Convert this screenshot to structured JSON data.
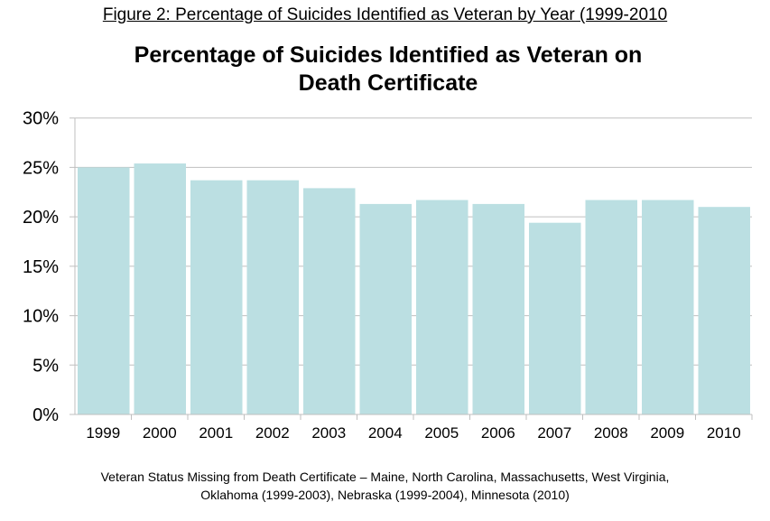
{
  "figure_caption": "Figure 2: Percentage of Suicides Identified as Veteran by Year (1999-2010",
  "footnote": {
    "line1": "Veteran Status Missing from Death Certificate – Maine, North Carolina, Massachusetts, West Virginia,",
    "line2": "Oklahoma (1999-2003), Nebraska (1999-2004), Minnesota (2010)"
  },
  "colors": {
    "bar": "#bbdfe2",
    "grid": "#bfbfbf"
  },
  "chart_data": {
    "type": "bar",
    "title": "Percentage of Suicides Identified as Veteran on Death Certificate",
    "title_lines": [
      "Percentage of Suicides Identified as Veteran on",
      "Death Certificate"
    ],
    "xlabel": "",
    "ylabel": "",
    "categories": [
      "1999",
      "2000",
      "2001",
      "2002",
      "2003",
      "2004",
      "2005",
      "2006",
      "2007",
      "2008",
      "2009",
      "2010"
    ],
    "values": [
      25.0,
      25.4,
      23.7,
      23.7,
      22.9,
      21.3,
      21.7,
      21.3,
      19.4,
      21.7,
      21.7,
      21.0
    ],
    "ylim": [
      0,
      30
    ],
    "yticks": [
      0,
      5,
      10,
      15,
      20,
      25,
      30
    ],
    "ytick_labels": [
      "0%",
      "5%",
      "10%",
      "15%",
      "20%",
      "25%",
      "30%"
    ],
    "grid": true,
    "legend": "none"
  }
}
